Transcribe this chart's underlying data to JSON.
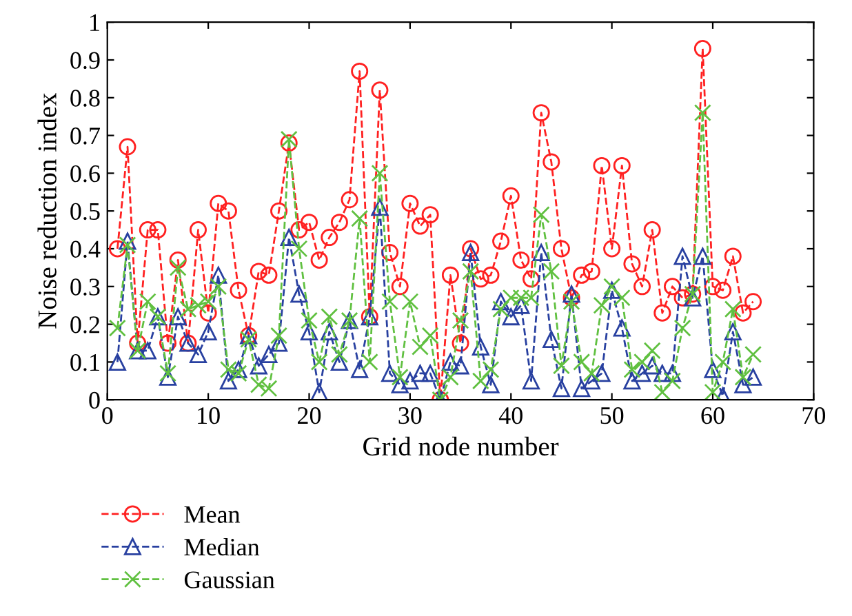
{
  "chart_data": {
    "type": "line",
    "xlabel": "Grid node number",
    "ylabel": "Noise reduction index",
    "x": [
      1,
      2,
      3,
      4,
      5,
      6,
      7,
      8,
      9,
      10,
      11,
      12,
      13,
      14,
      15,
      16,
      17,
      18,
      19,
      20,
      21,
      22,
      23,
      24,
      25,
      26,
      27,
      28,
      29,
      30,
      31,
      32,
      33,
      34,
      35,
      36,
      37,
      38,
      39,
      40,
      41,
      42,
      43,
      44,
      45,
      46,
      47,
      48,
      49,
      50,
      51,
      52,
      53,
      54,
      55,
      56,
      57,
      58,
      59,
      60,
      61,
      62,
      63,
      64
    ],
    "series": [
      {
        "name": "Mean",
        "color": "#ff2020",
        "marker": "circle",
        "values": [
          0.4,
          0.67,
          0.15,
          0.45,
          0.45,
          0.15,
          0.37,
          0.15,
          0.45,
          0.23,
          0.52,
          0.5,
          0.29,
          0.17,
          0.34,
          0.33,
          0.5,
          0.68,
          0.45,
          0.47,
          0.37,
          0.43,
          0.47,
          0.53,
          0.87,
          0.22,
          0.82,
          0.39,
          0.3,
          0.52,
          0.46,
          0.49,
          0.0,
          0.33,
          0.15,
          0.4,
          0.32,
          0.33,
          0.42,
          0.54,
          0.37,
          0.32,
          0.76,
          0.63,
          0.4,
          0.27,
          0.33,
          0.34,
          0.62,
          0.4,
          0.62,
          0.36,
          0.3,
          0.45,
          0.23,
          0.3,
          0.27,
          0.28,
          0.93,
          0.3,
          0.29,
          0.38,
          0.23,
          0.26
        ]
      },
      {
        "name": "Median",
        "color": "#2840a0",
        "marker": "triangle",
        "values": [
          0.1,
          0.42,
          0.13,
          0.13,
          0.22,
          0.06,
          0.22,
          0.15,
          0.12,
          0.18,
          0.33,
          0.05,
          0.08,
          0.17,
          0.09,
          0.12,
          0.15,
          0.43,
          0.28,
          0.18,
          0.02,
          0.18,
          0.1,
          0.21,
          0.08,
          0.22,
          0.51,
          0.07,
          0.04,
          0.05,
          0.07,
          0.07,
          0.0,
          0.1,
          0.09,
          0.39,
          0.14,
          0.04,
          0.26,
          0.22,
          0.25,
          0.05,
          0.39,
          0.16,
          0.03,
          0.28,
          0.03,
          0.05,
          0.07,
          0.29,
          0.19,
          0.05,
          0.07,
          0.09,
          0.07,
          0.07,
          0.38,
          0.27,
          0.38,
          0.08,
          0.01,
          0.18,
          0.04,
          0.06
        ]
      },
      {
        "name": "Gaussian",
        "color": "#60c040",
        "marker": "cross",
        "values": [
          0.19,
          0.41,
          0.13,
          0.26,
          0.22,
          0.07,
          0.35,
          0.24,
          0.25,
          0.26,
          0.3,
          0.08,
          0.07,
          0.16,
          0.04,
          0.03,
          0.17,
          0.69,
          0.4,
          0.21,
          0.1,
          0.22,
          0.12,
          0.21,
          0.48,
          0.1,
          0.6,
          0.26,
          0.06,
          0.26,
          0.14,
          0.17,
          0.0,
          0.06,
          0.21,
          0.34,
          0.05,
          0.08,
          0.24,
          0.27,
          0.27,
          0.27,
          0.49,
          0.34,
          0.09,
          0.26,
          0.1,
          0.07,
          0.25,
          0.3,
          0.27,
          0.08,
          0.1,
          0.13,
          0.02,
          0.05,
          0.19,
          0.28,
          0.76,
          0.02,
          0.1,
          0.24,
          0.06,
          0.12
        ]
      }
    ],
    "line_style": "dashed",
    "grid": false,
    "legend": "bottom left",
    "xlim": [
      0,
      70
    ],
    "xticks": [
      0,
      10,
      20,
      30,
      40,
      50,
      60,
      70
    ],
    "ylim": [
      0,
      1
    ],
    "yticks": [
      0,
      {
        "value": 0.1,
        "label": "0.1"
      },
      {
        "value": 0.2,
        "label": "0.2"
      },
      {
        "value": 0.3,
        "label": "0.3"
      },
      {
        "value": 0.4,
        "label": "0.4"
      },
      {
        "value": 0.5,
        "label": "0.5"
      },
      {
        "value": 0.6,
        "label": "0.6"
      },
      {
        "value": 0.7,
        "label": "0.7"
      },
      {
        "value": 0.8,
        "label": "0.8"
      },
      {
        "value": 0.9,
        "label": "0.9"
      },
      1
    ]
  }
}
